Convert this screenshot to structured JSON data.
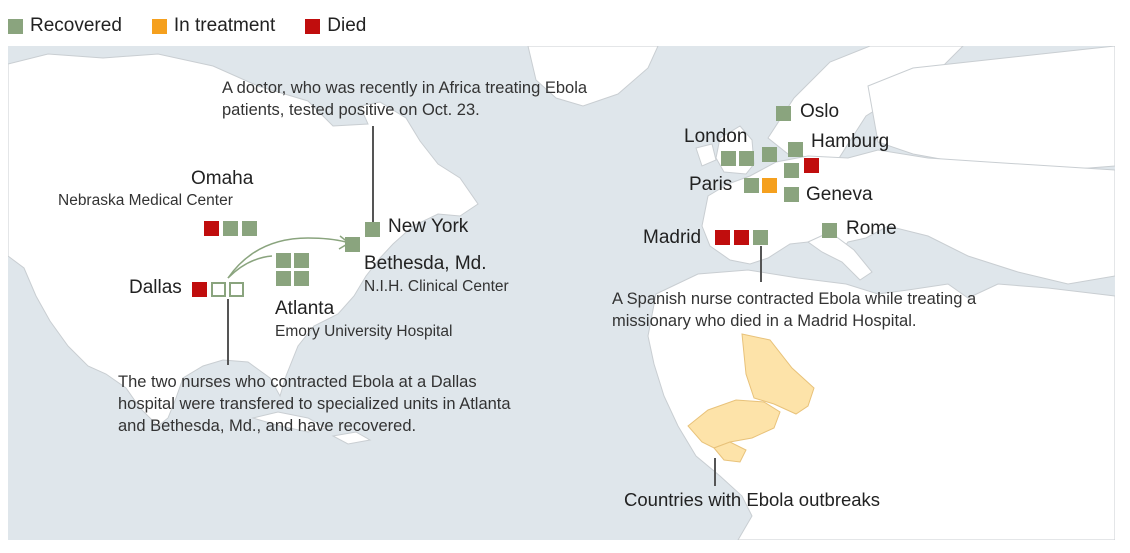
{
  "legend": [
    {
      "label": "Recovered",
      "color": "#8aa47e"
    },
    {
      "label": "In treatment",
      "color": "#f5a01e"
    },
    {
      "label": "Died",
      "color": "#c00d0d"
    }
  ],
  "colors": {
    "recovered": "#8aa47e",
    "treatment": "#f5a01e",
    "died": "#c00d0d",
    "water": "#dfe6eb",
    "land": "#ffffff",
    "outbreak": "#fde3a9",
    "border": "#c9ced2"
  },
  "cities": {
    "omaha": {
      "name": "Omaha",
      "sub": "Nebraska Medical Center"
    },
    "dallas": {
      "name": "Dallas"
    },
    "atlanta": {
      "name": "Atlanta",
      "sub": "Emory University Hospital"
    },
    "bethesda": {
      "name": "Bethesda, Md.",
      "sub": "N.I.H. Clinical Center"
    },
    "new_york": {
      "name": "New York"
    },
    "oslo": {
      "name": "Oslo"
    },
    "london": {
      "name": "London"
    },
    "hamburg": {
      "name": "Hamburg"
    },
    "paris": {
      "name": "Paris"
    },
    "geneva": {
      "name": "Geneva"
    },
    "madrid": {
      "name": "Madrid"
    },
    "rome": {
      "name": "Rome"
    }
  },
  "notes": {
    "new_york": "A doctor, who was recently in Africa treating Ebola patients, tested positive on Oct. 23.",
    "dallas": "The two nurses who contracted Ebola at a Dallas hospital were transfered to specialized units in Atlanta and Bethesda, Md., and have recovered.",
    "madrid": "A Spanish nurse contracted Ebola while treating a missionary who died in a Madrid Hospital.",
    "outbreak": "Countries with Ebola outbreaks"
  }
}
